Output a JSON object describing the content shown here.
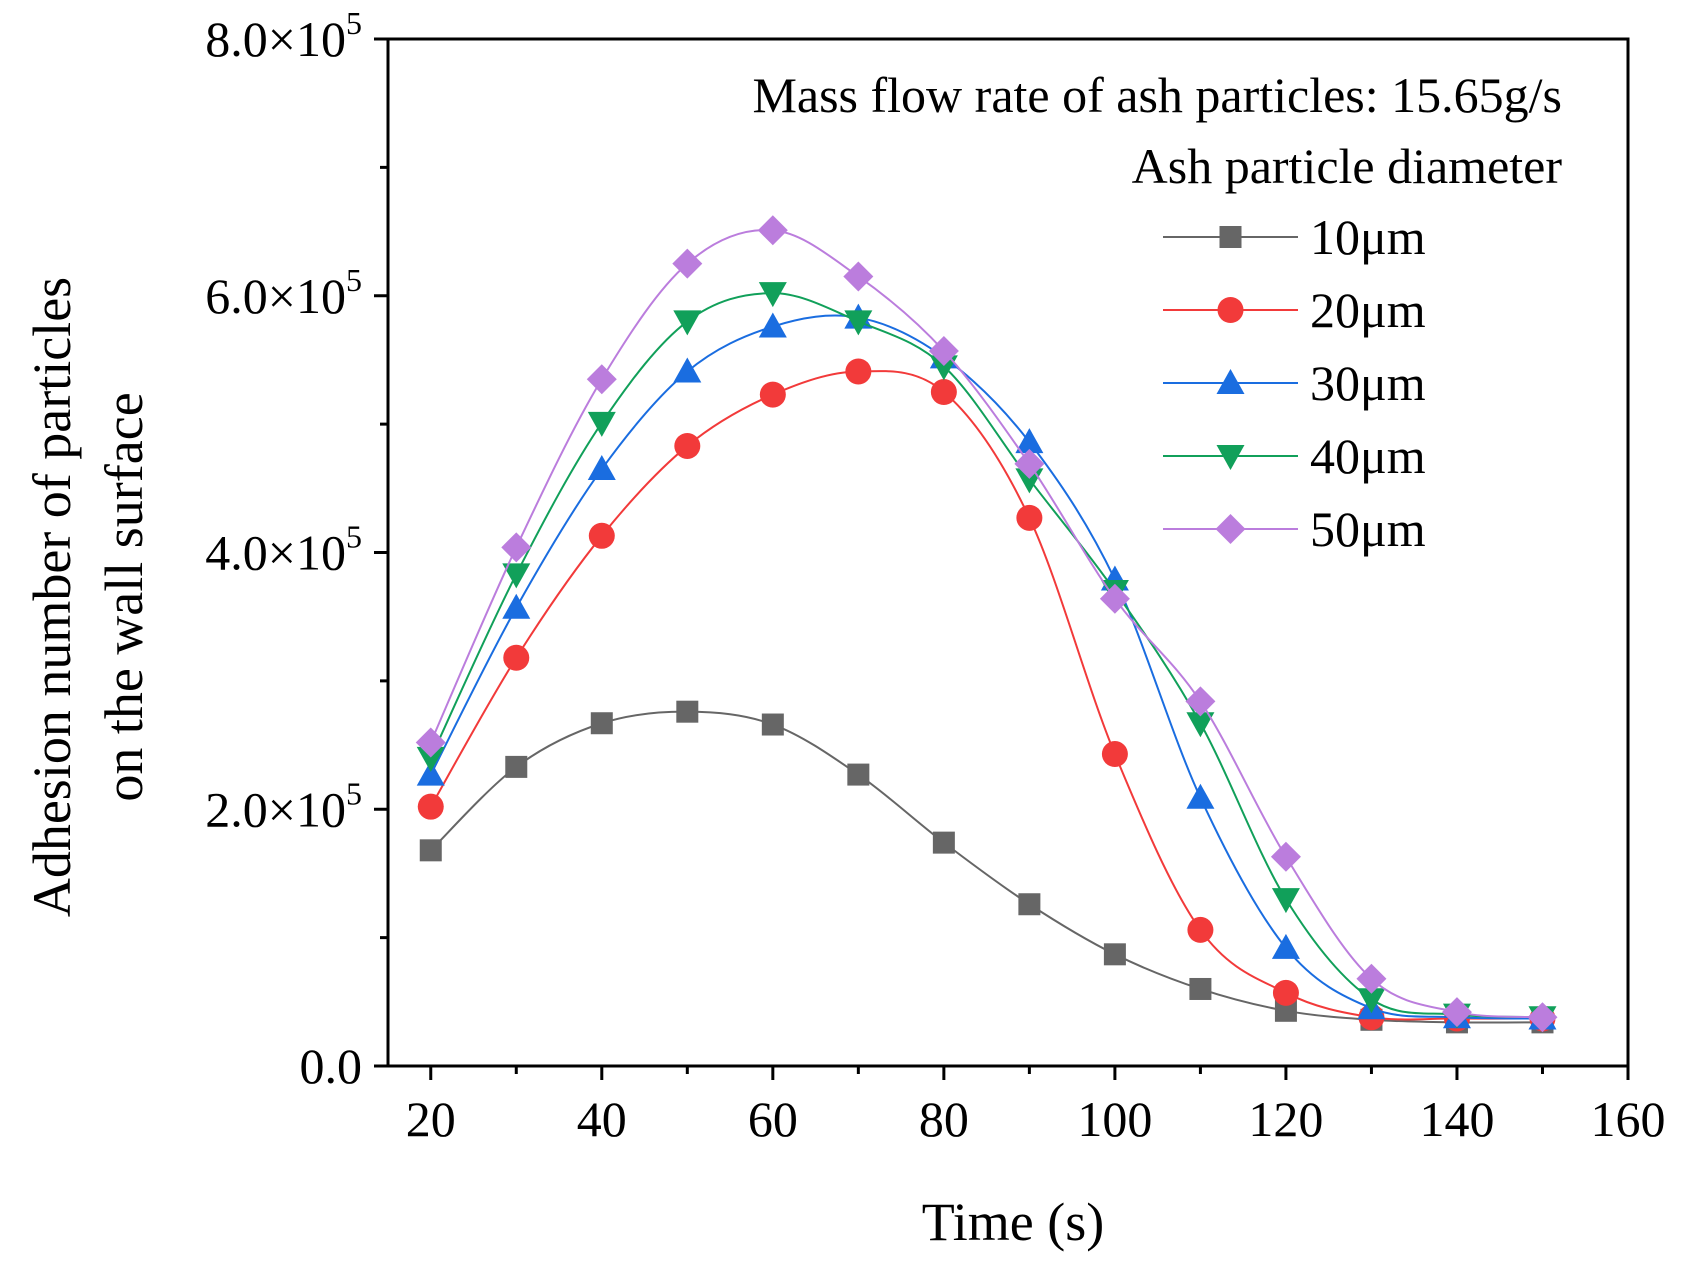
{
  "chart_data": {
    "type": "line",
    "xlabel": "Time (s)",
    "ylabel_lines": [
      "Adhesion number of particles",
      "on the wall surface"
    ],
    "annotations": {
      "line1": "Mass flow rate of ash particles: 15.65g/s",
      "line2": "Ash particle diameter"
    },
    "xlim": [
      15,
      160
    ],
    "ylim": [
      0,
      800000
    ],
    "x": [
      20,
      30,
      40,
      50,
      60,
      70,
      80,
      90,
      100,
      110,
      120,
      130,
      140,
      150
    ],
    "x_ticks": [
      {
        "value": 20,
        "label": "20"
      },
      {
        "value": 40,
        "label": "40"
      },
      {
        "value": 60,
        "label": "60"
      },
      {
        "value": 80,
        "label": "80"
      },
      {
        "value": 100,
        "label": "100"
      },
      {
        "value": 120,
        "label": "120"
      },
      {
        "value": 140,
        "label": "140"
      },
      {
        "value": 160,
        "label": "160"
      }
    ],
    "y_ticks": [
      {
        "value": 0,
        "mant": "0.0",
        "exp": ""
      },
      {
        "value": 200000,
        "mant": "2.0×10",
        "exp": "5"
      },
      {
        "value": 400000,
        "mant": "4.0×10",
        "exp": "5"
      },
      {
        "value": 600000,
        "mant": "6.0×10",
        "exp": "5"
      },
      {
        "value": 800000,
        "mant": "8.0×10",
        "exp": "5"
      }
    ],
    "y_minor_ticks": [
      100000,
      300000,
      500000,
      700000
    ],
    "legend_title": "Ash particle diameter",
    "legend_position": "top-right",
    "series": [
      {
        "name": "10μm",
        "color": "#666666",
        "marker": "square",
        "values": [
          168000,
          233000,
          267000,
          276000,
          266000,
          227000,
          174000,
          126000,
          87000,
          60000,
          43000,
          36000,
          34000,
          34000
        ]
      },
      {
        "name": "20μm",
        "color": "#f23a3a",
        "marker": "circle",
        "values": [
          202000,
          318000,
          413000,
          483000,
          523000,
          541000,
          525000,
          427000,
          243000,
          106000,
          57000,
          38000,
          37000,
          37000
        ]
      },
      {
        "name": "30μm",
        "color": "#1a6de0",
        "marker": "triangle-up",
        "values": [
          227000,
          357000,
          465000,
          541000,
          576000,
          583000,
          552000,
          486000,
          379000,
          209000,
          92000,
          45000,
          38000,
          37000
        ]
      },
      {
        "name": "40μm",
        "color": "#11a05a",
        "marker": "triangle-down",
        "values": [
          240000,
          383000,
          501000,
          580000,
          602000,
          580000,
          545000,
          457000,
          370000,
          267000,
          130000,
          52000,
          40000,
          38000
        ]
      },
      {
        "name": "50μm",
        "color": "#bb7ddd",
        "marker": "diamond",
        "values": [
          252000,
          404000,
          535000,
          625000,
          651000,
          615000,
          557000,
          469000,
          364000,
          284000,
          163000,
          68000,
          42000,
          38000
        ]
      }
    ]
  }
}
